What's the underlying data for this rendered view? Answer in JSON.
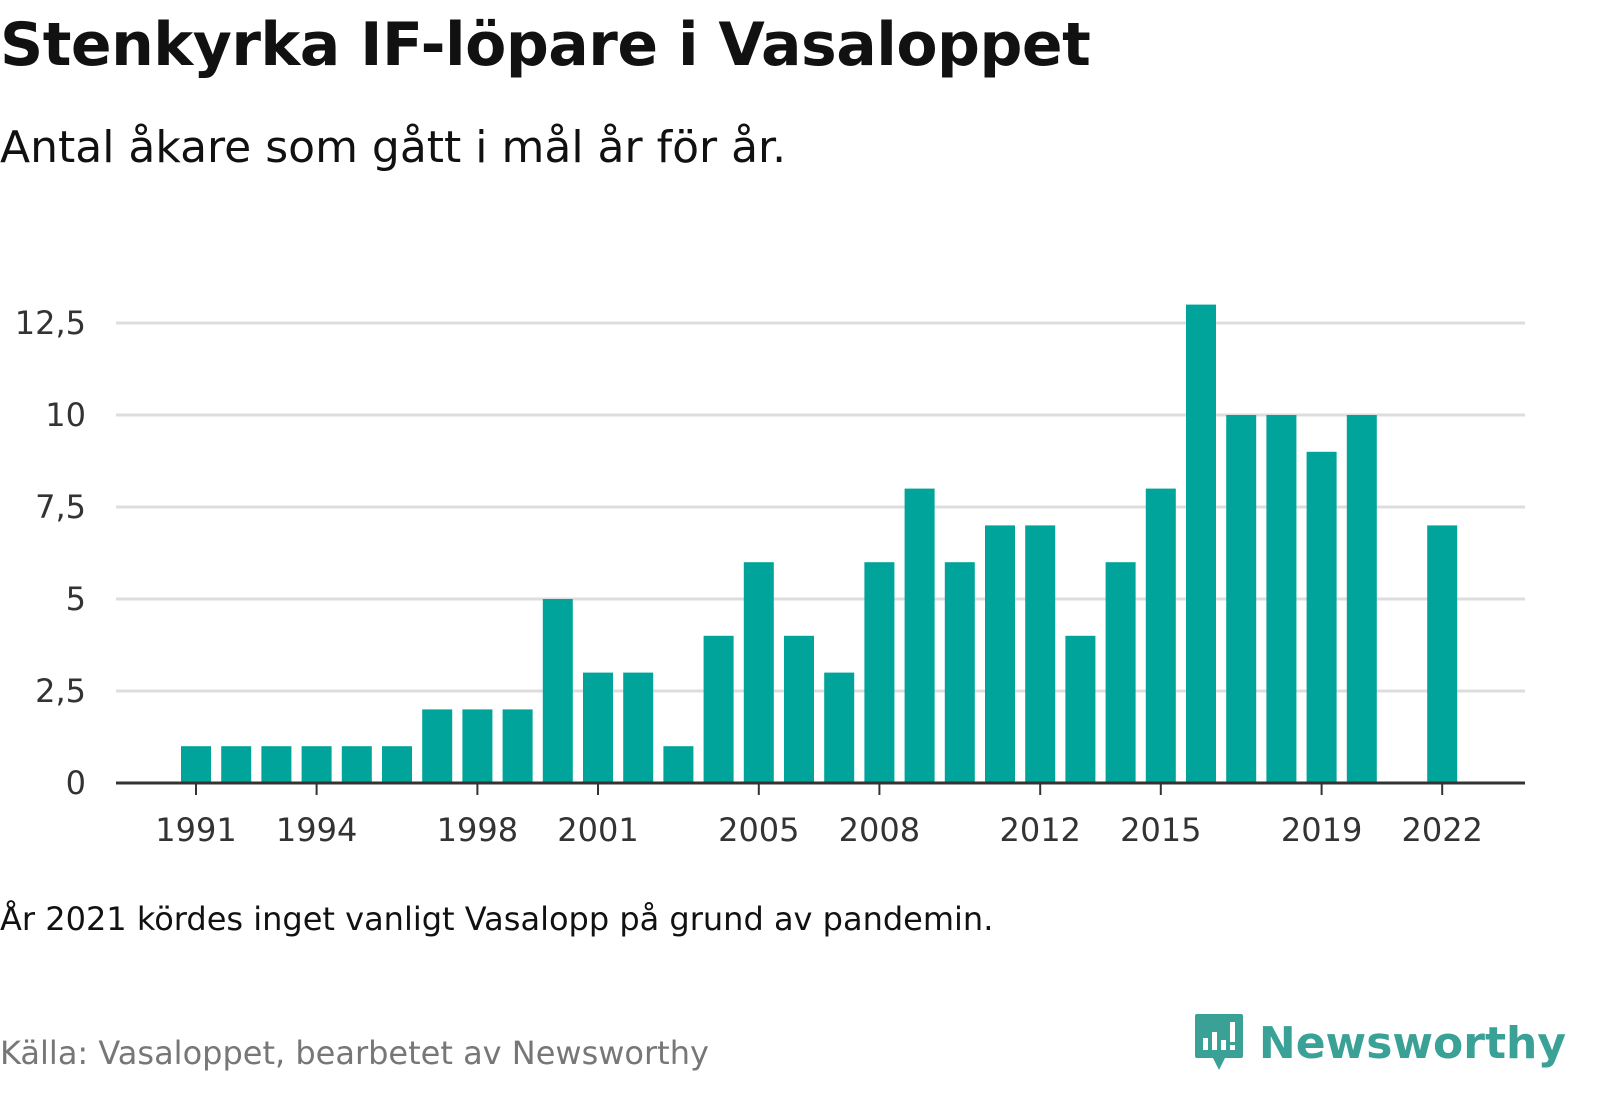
{
  "header": {
    "title": "Stenkyrka IF-löpare i Vasaloppet",
    "subtitle": "Antal åkare som gått i mål år för år."
  },
  "footer": {
    "note": "År 2021 kördes inget vanligt Vasalopp på grund av pandemin.",
    "source": "Källa: Vasaloppet, bearbetet av Newsworthy",
    "brand": "Newsworthy",
    "brand_icon": "newsworthy-logo-icon"
  },
  "colors": {
    "bar": "#00a49a",
    "grid": "#dddddd",
    "axis": "#333333",
    "brand": "#3aa197"
  },
  "chart_data": {
    "type": "bar",
    "categories": [
      1991,
      1992,
      1993,
      1994,
      1995,
      1996,
      1997,
      1998,
      1999,
      2000,
      2001,
      2002,
      2003,
      2004,
      2005,
      2006,
      2007,
      2008,
      2009,
      2010,
      2011,
      2012,
      2013,
      2014,
      2015,
      2016,
      2017,
      2018,
      2019,
      2020,
      2021,
      2022
    ],
    "values": [
      1,
      1,
      1,
      1,
      1,
      1,
      2,
      2,
      2,
      5,
      3,
      3,
      1,
      4,
      6,
      4,
      3,
      6,
      8,
      6,
      7,
      7,
      4,
      6,
      8,
      13,
      10,
      10,
      9,
      10,
      null,
      7
    ],
    "x_tick_labels": [
      "1991",
      "1994",
      "1998",
      "2001",
      "2005",
      "2008",
      "2012",
      "2015",
      "2019",
      "2022"
    ],
    "y_ticks": [
      0,
      2.5,
      5,
      7.5,
      10,
      12.5
    ],
    "y_tick_labels": [
      "0",
      "2,5",
      "5",
      "7,5",
      "10",
      "12,5"
    ],
    "ylim": [
      0,
      13
    ],
    "grid": true,
    "legend": "none"
  }
}
